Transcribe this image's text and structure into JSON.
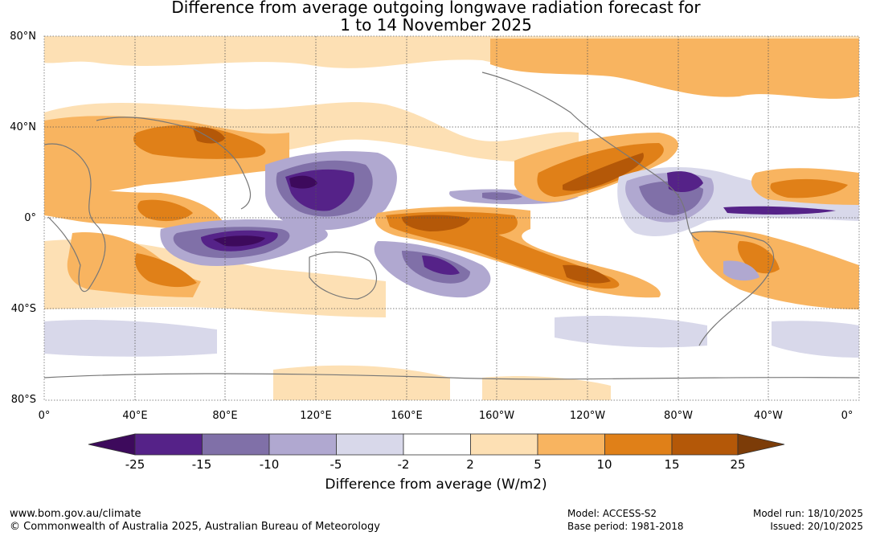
{
  "title": {
    "line1": "Difference from average outgoing longwave radiation forecast for",
    "line2": "1 to 14 November 2025"
  },
  "axes": {
    "lat_labels": [
      "80°N",
      "40°N",
      "0°",
      "40°S",
      "80°S"
    ],
    "lon_labels": [
      "0°",
      "40°E",
      "80°E",
      "120°E",
      "160°E",
      "160°W",
      "120°W",
      "80°W",
      "40°W",
      "0°"
    ]
  },
  "legend": {
    "title": "Difference from average (W/m2)",
    "ticks": [
      "-25",
      "-15",
      "-10",
      "-5",
      "-2",
      "2",
      "5",
      "10",
      "15",
      "25"
    ],
    "colors": [
      "#3d0a5c",
      "#552288",
      "#8070a8",
      "#b0a8d0",
      "#d8d8ea",
      "#ffffff",
      "#fde0b4",
      "#f8b460",
      "#e08018",
      "#b45808",
      "#7c3c08"
    ]
  },
  "footer": {
    "website": "www.bom.gov.au/climate",
    "copyright": "© Commonwealth of Australia 2025, Australian Bureau of Meteorology",
    "model": "Model: ACCESS-S2",
    "base_period": "Base period: 1981-2018",
    "model_run": "Model run: 18/10/2025",
    "issued": "Issued: 20/10/2025"
  }
}
